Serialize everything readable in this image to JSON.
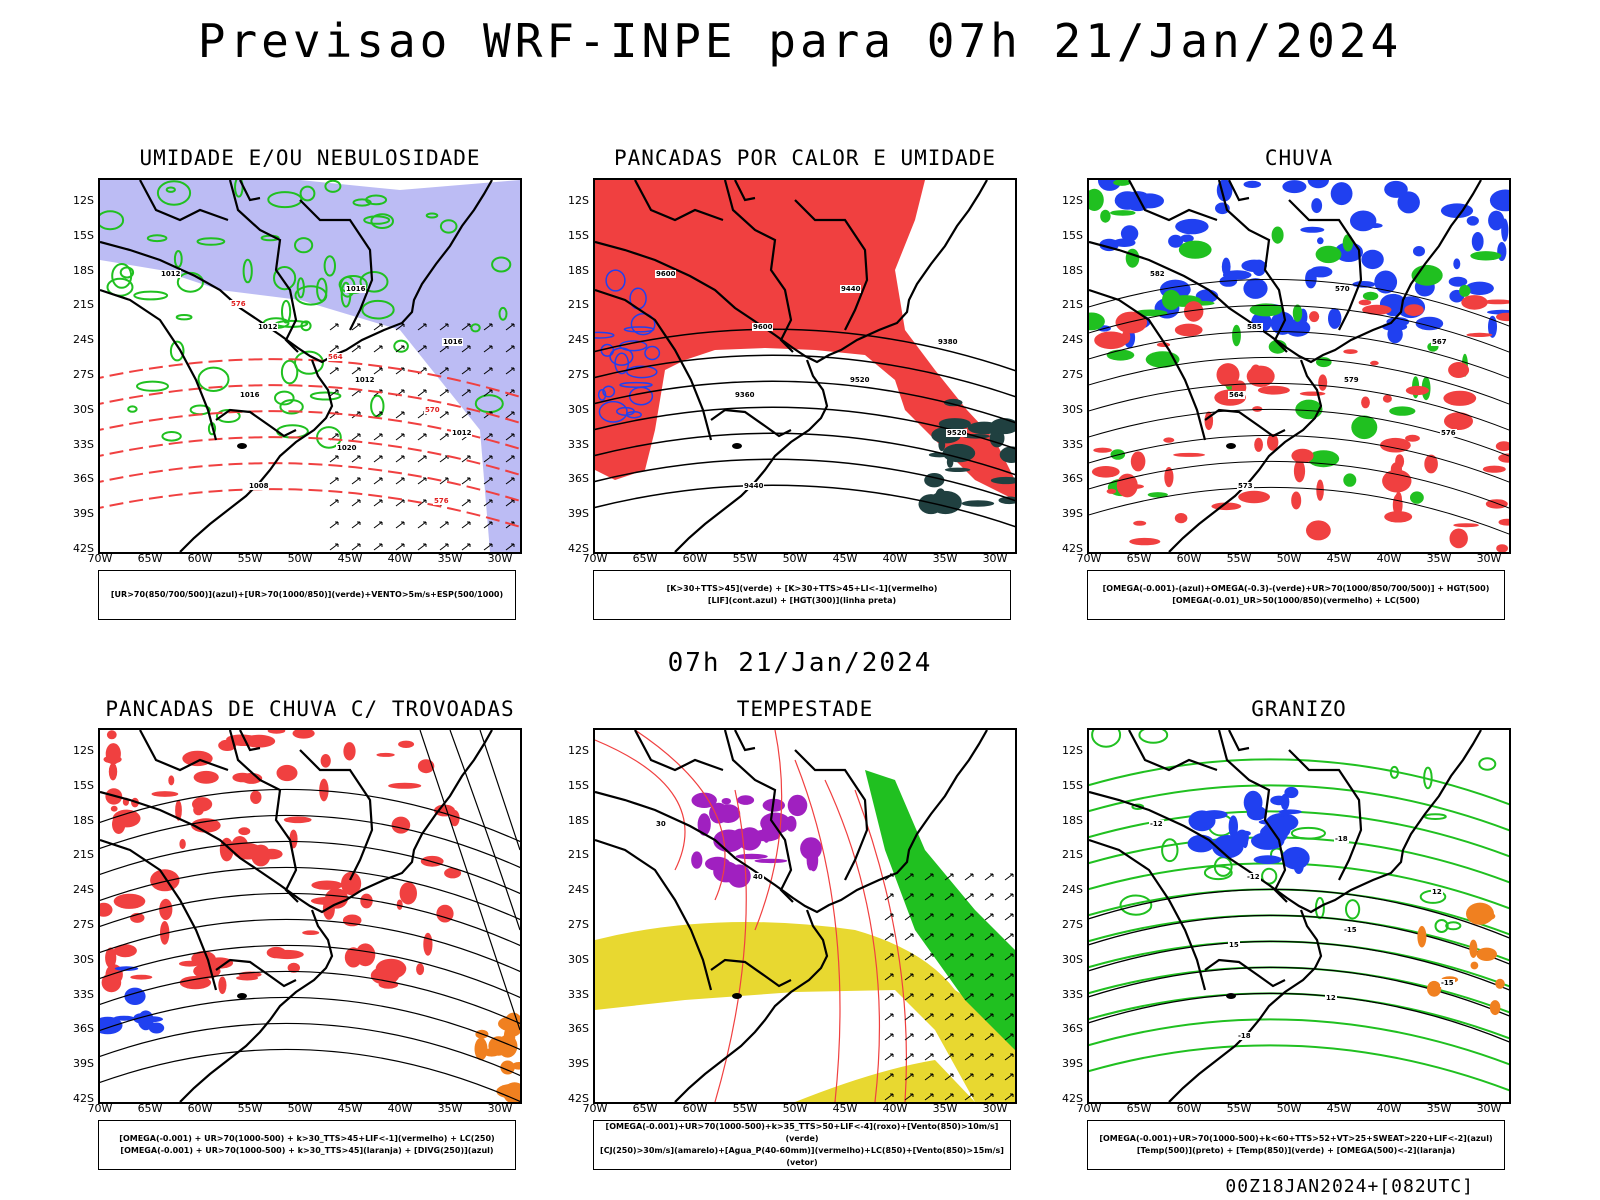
{
  "main_title": "Previsao WRF-INPE  para 07h 21/Jan/2024",
  "mid_title": "07h 21/Jan/2024",
  "footer": "00Z18JAN2024+[082UTC]",
  "lat_labels": [
    "12S",
    "15S",
    "18S",
    "21S",
    "24S",
    "27S",
    "30S",
    "33S",
    "36S",
    "39S",
    "42S"
  ],
  "lon_labels": [
    "70W",
    "65W",
    "60W",
    "55W",
    "50W",
    "45W",
    "40W",
    "35W",
    "30W"
  ],
  "panels": [
    {
      "title": "UMIDADE E/OU NEBULOSIDADE",
      "legend": [
        "[UR>70(850/700/500)](azul)+[UR>70(1000/850)](verde)+VENTO>5m/s+ESP(500/1000)"
      ],
      "labels": [
        "1012",
        "1012",
        "1012",
        "1012",
        "1008",
        "1016",
        "1016",
        "1016",
        "1020",
        "576",
        "576",
        "564",
        "570"
      ]
    },
    {
      "title": "PANCADAS POR CALOR E UMIDADE",
      "legend": [
        "[K>30+TTS>45](verde) + [K>30+TTS>45+LI<-1](vermelho)",
        "[LIF](cont.azul) + [HGT(300)](linha preta)"
      ],
      "labels": [
        "9600",
        "9600",
        "9520",
        "9520",
        "9440",
        "9440",
        "9380",
        "9360"
      ]
    },
    {
      "title": "CHUVA",
      "legend": [
        "[OMEGA(-0.001)-(azul)+OMEGA(-0.3)-(verde)+UR>70(1000/850/700/500)] + HGT(500)",
        "[OMEGA(-0.01)_UR>50(1000/850)(vermelho) + LC(500)"
      ],
      "labels": [
        "582",
        "585",
        "579",
        "576",
        "573",
        "570",
        "567",
        "564"
      ]
    },
    {
      "title": "PANCADAS DE CHUVA C/ TROVOADAS",
      "legend": [
        "[OMEGA(-0.001) + UR>70(1000-500) + k>30_TTS>45+LIF<-1](vermelho) + LC(250)",
        "[OMEGA(-0.001) + UR>70(1000-500) + k>30_TTS>45](laranja) + [DIVG(250)](azul)"
      ],
      "labels": []
    },
    {
      "title": "TEMPESTADE",
      "legend": [
        "[OMEGA(-0.001)+UR>70(1000-500)+k>35_TTS>50+LIF<-4](roxo)+[Vento(850)>10m/s](verde)",
        "[CJ(250)>30m/s](amarelo)+[Agua_P(40-60mm)](vermelho)+LC(850)+[Vento(850)>15m/s](vetor)"
      ],
      "labels": [
        "30",
        "40"
      ]
    },
    {
      "title": "GRANIZO",
      "legend": [
        "[OMEGA(-0.001)+UR>70(1000-500)+k<60+TTS>52+VT>25+SWEAT>220+LIF<-2](azul)",
        "[Temp(500)](preto) + [Temp(850)](verde) + [OMEGA(500)<-2](laranja)"
      ],
      "labels": [
        "-12",
        "-12",
        "-15",
        "-15",
        "-18",
        "-18",
        "12",
        "15",
        "12"
      ]
    }
  ],
  "colors": {
    "red": "#f04040",
    "blue": "#2040f0",
    "green": "#20c020",
    "lavender": "#a0a0f0",
    "yellow": "#e8d830",
    "purple": "#a020c0",
    "orange": "#f08020",
    "darkgreen": "#204040"
  }
}
